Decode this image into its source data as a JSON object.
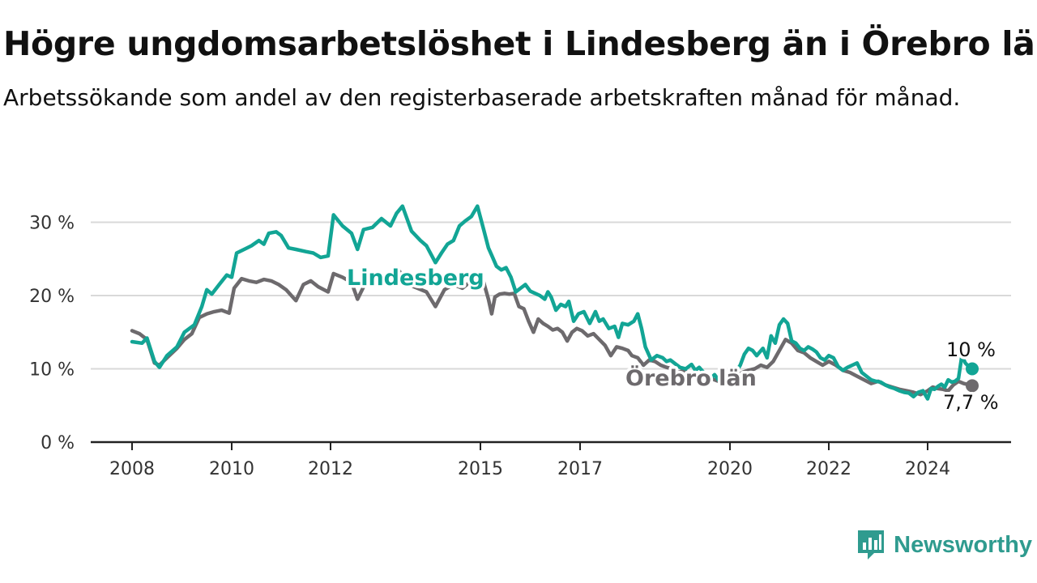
{
  "title": "Högre ungdomsarbetslöshet i Lindesberg än i Örebro län",
  "subtitle": "Arbetssökande som andel av den registerbaserade arbetskraften månad för månad.",
  "brand": {
    "name": "Newsworthy",
    "icon": "newsworthy-logo-icon"
  },
  "colors": {
    "lindesberg": "#12a595",
    "orebro": "#6d6a6d",
    "grid": "#d9d9d9",
    "brand": "#2f9b8f"
  },
  "chart_data": {
    "type": "line",
    "title": "Högre ungdomsarbetslöshet i Lindesberg än i Örebro län",
    "subtitle": "Arbetssökande som andel av den registerbaserade arbetskraften månad för månad.",
    "xlabel": "",
    "ylabel": "",
    "x_ticks": [
      2008,
      2010,
      2012,
      2015,
      2017,
      2020,
      2022,
      2024
    ],
    "x_tick_labels": [
      "2008",
      "2010",
      "2012",
      "2015",
      "2017",
      "2020",
      "2022",
      "2024"
    ],
    "y_ticks": [
      0,
      10,
      20,
      30
    ],
    "y_tick_labels": [
      "0 %",
      "10 %",
      "20 %",
      "30 %"
    ],
    "ylim": [
      0,
      33
    ],
    "grid": true,
    "series": [
      {
        "name": "Lindesberg",
        "color": "#12a595",
        "end_label": "10 %",
        "points": [
          [
            2008.0,
            13.7
          ],
          [
            2008.2,
            13.5
          ],
          [
            2008.3,
            14.2
          ],
          [
            2008.45,
            11.0
          ],
          [
            2008.55,
            10.2
          ],
          [
            2008.7,
            11.8
          ],
          [
            2008.9,
            13.0
          ],
          [
            2009.05,
            15.0
          ],
          [
            2009.25,
            16.0
          ],
          [
            2009.4,
            18.5
          ],
          [
            2009.5,
            20.8
          ],
          [
            2009.6,
            20.2
          ],
          [
            2009.75,
            21.5
          ],
          [
            2009.9,
            22.8
          ],
          [
            2010.0,
            22.5
          ],
          [
            2010.1,
            25.8
          ],
          [
            2010.25,
            26.3
          ],
          [
            2010.4,
            26.8
          ],
          [
            2010.55,
            27.5
          ],
          [
            2010.65,
            27.0
          ],
          [
            2010.75,
            28.5
          ],
          [
            2010.9,
            28.7
          ],
          [
            2011.0,
            28.2
          ],
          [
            2011.15,
            26.5
          ],
          [
            2011.3,
            26.3
          ],
          [
            2011.5,
            26.0
          ],
          [
            2011.65,
            25.8
          ],
          [
            2011.8,
            25.2
          ],
          [
            2011.95,
            25.4
          ],
          [
            2012.05,
            31.0
          ],
          [
            2012.2,
            29.5
          ],
          [
            2012.35,
            28.5
          ],
          [
            2012.45,
            26.3
          ],
          [
            2012.55,
            29.0
          ],
          [
            2012.7,
            29.3
          ],
          [
            2012.85,
            30.5
          ],
          [
            2013.0,
            29.5
          ],
          [
            2013.1,
            31.2
          ],
          [
            2013.2,
            32.2
          ],
          [
            2013.35,
            28.8
          ],
          [
            2013.5,
            27.5
          ],
          [
            2013.6,
            26.8
          ],
          [
            2013.75,
            24.5
          ],
          [
            2013.85,
            25.8
          ],
          [
            2013.95,
            27.0
          ],
          [
            2014.05,
            27.5
          ],
          [
            2014.15,
            29.5
          ],
          [
            2014.25,
            30.2
          ],
          [
            2014.35,
            30.8
          ],
          [
            2014.45,
            32.2
          ],
          [
            2014.6,
            29.0
          ],
          [
            2014.75,
            26.5
          ],
          [
            2014.85,
            25.5
          ],
          [
            2015.0,
            24.0
          ],
          [
            2015.15,
            23.5
          ],
          [
            2015.3,
            23.8
          ],
          [
            2015.45,
            22.5
          ],
          [
            2015.6,
            20.5
          ],
          [
            2015.75,
            21.0
          ],
          [
            2015.9,
            21.5
          ],
          [
            2016.05,
            20.6
          ],
          [
            2016.2,
            20.3
          ],
          [
            2016.35,
            20.0
          ],
          [
            2016.5,
            19.5
          ],
          [
            2016.6,
            20.5
          ],
          [
            2016.7,
            19.8
          ],
          [
            2016.85,
            18.0
          ],
          [
            2017.0,
            18.8
          ],
          [
            2017.15,
            18.5
          ],
          [
            2017.25,
            19.2
          ],
          [
            2017.4,
            16.5
          ],
          [
            2017.55,
            17.5
          ],
          [
            2017.7,
            17.8
          ],
          [
            2017.85,
            16.2
          ],
          [
            2018.0,
            17.8
          ],
          [
            2018.1,
            16.5
          ],
          [
            2018.2,
            16.8
          ],
          [
            2018.35,
            15.5
          ],
          [
            2018.5,
            15.8
          ],
          [
            2018.6,
            14.3
          ],
          [
            2018.7,
            16.2
          ],
          [
            2018.85,
            16.0
          ],
          [
            2019.0,
            16.5
          ],
          [
            2019.1,
            17.5
          ],
          [
            2019.2,
            15.5
          ],
          [
            2019.3,
            13.0
          ],
          [
            2019.45,
            11.2
          ],
          [
            2019.6,
            11.8
          ],
          [
            2019.75,
            11.5
          ],
          [
            2019.85,
            11.0
          ],
          [
            2019.95,
            11.2
          ],
          [
            2020.05,
            10.8
          ],
          [
            2020.2,
            10.2
          ],
          [
            2020.35,
            10.0
          ],
          [
            2020.5,
            10.6
          ],
          [
            2020.6,
            9.8
          ],
          [
            2020.7,
            10.2
          ],
          [
            2020.8,
            9.6
          ],
          [
            2020.9,
            8.8
          ],
          [
            2021.0,
            8.7
          ],
          [
            2021.1,
            9.2
          ],
          [
            2021.2,
            8.5
          ],
          [
            2021.3,
            9.6
          ],
          [
            2021.45,
            9.0
          ],
          [
            2021.6,
            9.2
          ],
          [
            2021.75,
            10.5
          ],
          [
            2021.85,
            12.0
          ],
          [
            2021.95,
            12.8
          ],
          [
            2022.05,
            12.5
          ],
          [
            2022.15,
            11.8
          ],
          [
            2022.3,
            12.8
          ],
          [
            2022.4,
            11.5
          ],
          [
            2022.5,
            14.5
          ],
          [
            2022.6,
            13.5
          ],
          [
            2022.7,
            16.0
          ],
          [
            2022.8,
            16.8
          ],
          [
            2022.9,
            16.2
          ],
          [
            2023.0,
            13.8
          ],
          [
            2023.1,
            13.5
          ],
          [
            2023.2,
            12.8
          ],
          [
            2023.3,
            12.5
          ],
          [
            2023.4,
            13.0
          ],
          [
            2023.5,
            12.7
          ],
          [
            2023.6,
            12.3
          ],
          [
            2023.7,
            11.5
          ],
          [
            2023.8,
            11.2
          ],
          [
            2023.9,
            11.8
          ],
          [
            2024.0,
            11.5
          ],
          [
            2024.1,
            10.3
          ],
          [
            2024.2,
            9.8
          ],
          [
            2024.3,
            10.2
          ],
          [
            2024.4,
            10.5
          ],
          [
            2024.5,
            10.8
          ],
          [
            2024.6,
            9.5
          ],
          [
            2024.7,
            9.0
          ],
          [
            2024.8,
            8.5
          ],
          [
            2024.9,
            8.3
          ],
          [
            2025.0,
            8.2
          ],
          [
            2025.1,
            7.8
          ],
          [
            2025.2,
            7.5
          ],
          [
            2025.3,
            7.3
          ],
          [
            2025.4,
            7.0
          ],
          [
            2025.5,
            6.8
          ],
          [
            2025.6,
            6.7
          ],
          [
            2025.7,
            6.2
          ],
          [
            2025.8,
            6.8
          ],
          [
            2025.9,
            7.0
          ],
          [
            2026.0,
            5.9
          ],
          [
            2026.1,
            7.3
          ],
          [
            2026.2,
            7.2
          ],
          [
            2026.3,
            7.6
          ],
          [
            2026.4,
            7.9
          ],
          [
            2026.5,
            7.5
          ],
          [
            2026.6,
            8.5
          ],
          [
            2026.7,
            8.2
          ],
          [
            2026.8,
            8.3
          ],
          [
            2026.9,
            8.7
          ],
          [
            2027.0,
            11.8
          ],
          [
            2027.1,
            10.8
          ],
          [
            2027.2,
            10.3
          ],
          [
            2027.3,
            10.0
          ]
        ]
      },
      {
        "name": "Örebro län",
        "color": "#6d6a6d",
        "end_label": "7,7 %",
        "points": [
          [
            2008.0,
            15.2
          ],
          [
            2008.15,
            14.8
          ],
          [
            2008.3,
            14.0
          ],
          [
            2008.45,
            10.8
          ],
          [
            2008.55,
            10.5
          ],
          [
            2008.7,
            11.5
          ],
          [
            2008.9,
            12.8
          ],
          [
            2009.05,
            14.0
          ],
          [
            2009.2,
            14.8
          ],
          [
            2009.35,
            17.0
          ],
          [
            2009.5,
            17.5
          ],
          [
            2009.65,
            17.8
          ],
          [
            2009.8,
            18.0
          ],
          [
            2009.95,
            17.6
          ],
          [
            2010.05,
            21.0
          ],
          [
            2010.2,
            22.3
          ],
          [
            2010.35,
            22.0
          ],
          [
            2010.5,
            21.8
          ],
          [
            2010.65,
            22.2
          ],
          [
            2010.8,
            22.0
          ],
          [
            2010.95,
            21.5
          ],
          [
            2011.1,
            20.8
          ],
          [
            2011.3,
            19.3
          ],
          [
            2011.45,
            21.5
          ],
          [
            2011.6,
            22.0
          ],
          [
            2011.75,
            21.2
          ],
          [
            2011.95,
            20.5
          ],
          [
            2012.05,
            23.0
          ],
          [
            2012.2,
            22.5
          ],
          [
            2012.35,
            21.8
          ],
          [
            2012.45,
            19.5
          ],
          [
            2012.6,
            22.0
          ],
          [
            2012.75,
            22.2
          ],
          [
            2012.9,
            22.5
          ],
          [
            2013.0,
            22.2
          ],
          [
            2013.15,
            23.3
          ],
          [
            2013.3,
            21.5
          ],
          [
            2013.45,
            21.0
          ],
          [
            2013.6,
            20.5
          ],
          [
            2013.75,
            18.5
          ],
          [
            2013.9,
            20.8
          ],
          [
            2014.05,
            21.5
          ],
          [
            2014.2,
            21.0
          ],
          [
            2014.35,
            22.0
          ],
          [
            2014.5,
            21.5
          ],
          [
            2014.6,
            21.8
          ],
          [
            2014.75,
            19.5
          ],
          [
            2014.85,
            17.5
          ],
          [
            2014.95,
            19.8
          ],
          [
            2015.1,
            20.2
          ],
          [
            2015.25,
            20.3
          ],
          [
            2015.4,
            20.2
          ],
          [
            2015.55,
            20.3
          ],
          [
            2015.7,
            18.5
          ],
          [
            2015.85,
            18.2
          ],
          [
            2016.0,
            16.5
          ],
          [
            2016.15,
            15.0
          ],
          [
            2016.3,
            16.8
          ],
          [
            2016.45,
            16.2
          ],
          [
            2016.6,
            15.8
          ],
          [
            2016.75,
            15.3
          ],
          [
            2016.9,
            15.5
          ],
          [
            2017.05,
            15.0
          ],
          [
            2017.2,
            13.8
          ],
          [
            2017.35,
            15.0
          ],
          [
            2017.5,
            15.5
          ],
          [
            2017.65,
            15.2
          ],
          [
            2017.8,
            14.5
          ],
          [
            2017.95,
            14.8
          ],
          [
            2018.1,
            14.0
          ],
          [
            2018.25,
            13.2
          ],
          [
            2018.4,
            11.8
          ],
          [
            2018.55,
            13.0
          ],
          [
            2018.7,
            12.8
          ],
          [
            2018.85,
            12.5
          ],
          [
            2018.95,
            11.8
          ],
          [
            2019.1,
            11.5
          ],
          [
            2019.25,
            10.5
          ],
          [
            2019.4,
            11.2
          ],
          [
            2019.55,
            11.0
          ],
          [
            2019.7,
            10.5
          ],
          [
            2019.85,
            10.2
          ],
          [
            2020.0,
            10.0
          ],
          [
            2020.15,
            9.5
          ],
          [
            2020.3,
            9.8
          ],
          [
            2020.45,
            9.2
          ],
          [
            2020.6,
            9.0
          ],
          [
            2020.75,
            8.8
          ],
          [
            2020.9,
            8.5
          ],
          [
            2021.05,
            8.6
          ],
          [
            2021.2,
            8.3
          ],
          [
            2021.35,
            8.8
          ],
          [
            2021.5,
            8.7
          ],
          [
            2021.65,
            9.0
          ],
          [
            2021.8,
            9.5
          ],
          [
            2021.95,
            9.8
          ],
          [
            2022.1,
            10.0
          ],
          [
            2022.25,
            10.5
          ],
          [
            2022.4,
            10.2
          ],
          [
            2022.55,
            11.0
          ],
          [
            2022.7,
            12.5
          ],
          [
            2022.85,
            14.0
          ],
          [
            2023.0,
            13.5
          ],
          [
            2023.15,
            12.5
          ],
          [
            2023.3,
            12.2
          ],
          [
            2023.45,
            11.5
          ],
          [
            2023.6,
            11.0
          ],
          [
            2023.75,
            10.5
          ],
          [
            2023.9,
            11.0
          ],
          [
            2024.05,
            10.5
          ],
          [
            2024.2,
            9.8
          ],
          [
            2024.35,
            9.5
          ],
          [
            2024.5,
            9.0
          ],
          [
            2024.65,
            8.5
          ],
          [
            2024.8,
            8.0
          ],
          [
            2024.95,
            8.3
          ],
          [
            2025.1,
            7.8
          ],
          [
            2025.25,
            7.5
          ],
          [
            2025.4,
            7.2
          ],
          [
            2025.55,
            7.0
          ],
          [
            2025.7,
            6.8
          ],
          [
            2025.85,
            6.5
          ],
          [
            2026.0,
            7.0
          ],
          [
            2026.15,
            7.5
          ],
          [
            2026.3,
            7.3
          ],
          [
            2026.45,
            7.2
          ],
          [
            2026.6,
            7.0
          ],
          [
            2026.75,
            7.8
          ],
          [
            2026.9,
            8.3
          ],
          [
            2027.05,
            8.0
          ],
          [
            2027.3,
            7.7
          ]
        ]
      }
    ],
    "x_range_internal_note": ""
  }
}
